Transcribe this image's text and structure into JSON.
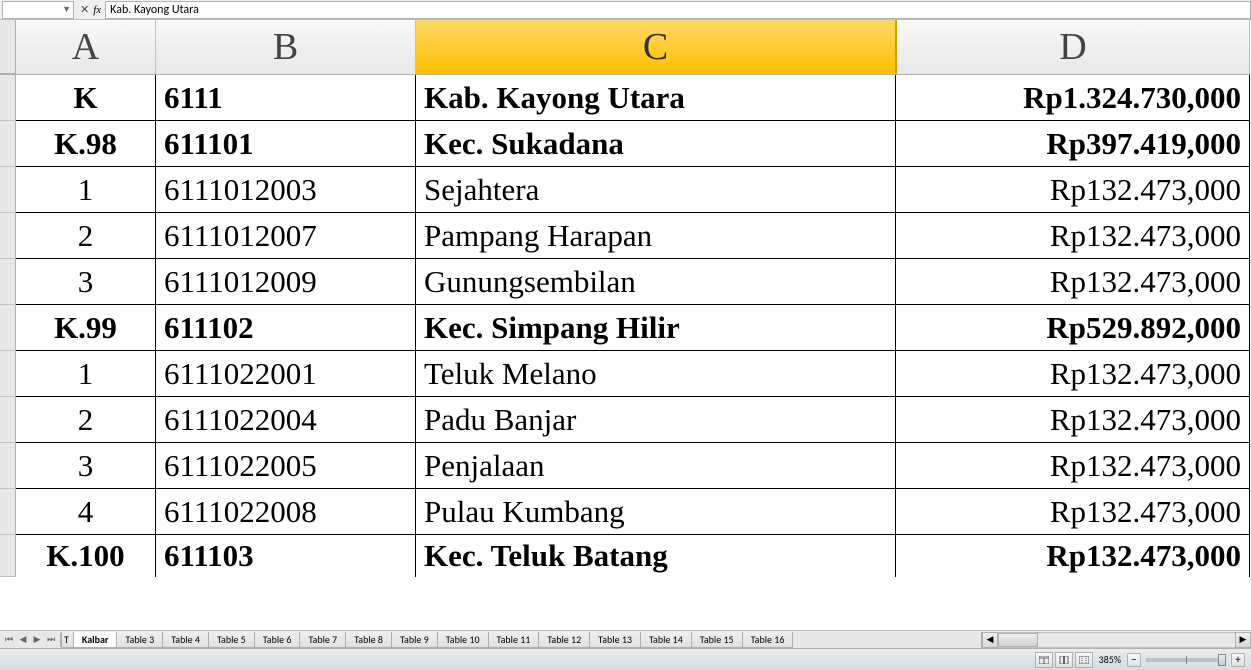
{
  "formula_bar": {
    "name_box": "",
    "fx_value": "Kab.  Kayong  Utara"
  },
  "columns": {
    "headers": [
      "A",
      "B",
      "C",
      "D"
    ],
    "selected_index": 2,
    "widths": {
      "a": 140,
      "b": 260,
      "c": 480,
      "d": 354
    }
  },
  "rows": [
    {
      "a": "K",
      "b": "6111",
      "c": "Kab.  Kayong  Utara",
      "d": "Rp1.324.730,000",
      "bold": true
    },
    {
      "a": "K.98",
      "b": "611101",
      "c": "Kec.  Sukadana",
      "d": "Rp397.419,000",
      "bold": true
    },
    {
      "a": "1",
      "b": "6111012003",
      "c": "Sejahtera",
      "d": "Rp132.473,000",
      "bold": false
    },
    {
      "a": "2",
      "b": "6111012007",
      "c": "Pampang  Harapan",
      "d": "Rp132.473,000",
      "bold": false
    },
    {
      "a": "3",
      "b": "6111012009",
      "c": "Gunungsembilan",
      "d": "Rp132.473,000",
      "bold": false
    },
    {
      "a": "K.99",
      "b": "611102",
      "c": "Kec.  Simpang  Hilir",
      "d": "Rp529.892,000",
      "bold": true
    },
    {
      "a": "1",
      "b": "6111022001",
      "c": "Teluk Melano",
      "d": "Rp132.473,000",
      "bold": false
    },
    {
      "a": "2",
      "b": "6111022004",
      "c": "Padu  Banjar",
      "d": "Rp132.473,000",
      "bold": false
    },
    {
      "a": "3",
      "b": "6111022005",
      "c": "Penjalaan",
      "d": "Rp132.473,000",
      "bold": false
    },
    {
      "a": "4",
      "b": "6111022008",
      "c": "Pulau  Kumbang",
      "d": "Rp132.473,000",
      "bold": false
    },
    {
      "a": "K.100",
      "b": "611103",
      "c": "Kec.  Teluk  Batang",
      "d": "Rp132.473,000",
      "bold": true
    }
  ],
  "sheet_tabs": {
    "first_cut": "T",
    "active": "Kalbar",
    "tabs": [
      "Table 3",
      "Table 4",
      "Table 5",
      "Table 6",
      "Table 7",
      "Table 8",
      "Table 9",
      "Table 10",
      "Table 11",
      "Table 12",
      "Table 13",
      "Table 14",
      "Table 15",
      "Table 16"
    ]
  },
  "status_bar": {
    "zoom": "385%",
    "minus": "−",
    "plus": "+"
  },
  "colors": {
    "selected_header_grad_top": "#ffd966",
    "selected_header_grad_bot": "#ffc000",
    "grid_border": "#000000",
    "header_bg": "#e8e8e8"
  }
}
